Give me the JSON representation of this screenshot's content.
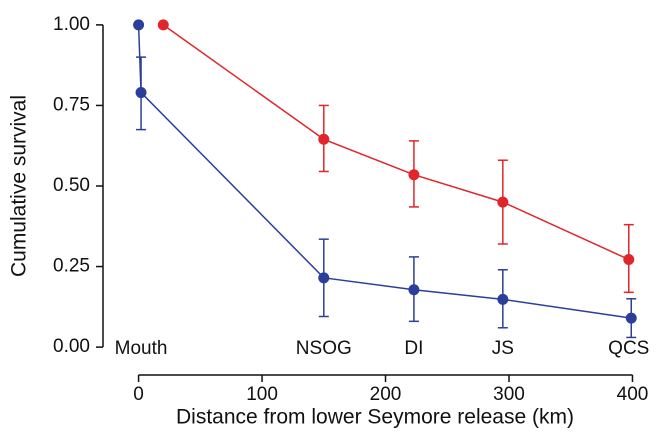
{
  "chart_data": {
    "type": "line",
    "xlabel": "Distance from lower Seymore release (km)",
    "ylabel": "Cumulative survival",
    "xlim": [
      -28,
      415
    ],
    "ylim": [
      -0.04,
      1.04
    ],
    "xticks": [
      0,
      100,
      200,
      300,
      400
    ],
    "yticks": [
      {
        "value": 0,
        "label": "0.00"
      },
      {
        "value": 0.25,
        "label": "0.25"
      },
      {
        "value": 0.5,
        "label": "0.50"
      },
      {
        "value": 0.75,
        "label": "0.75"
      },
      {
        "value": 1,
        "label": "1.00"
      }
    ],
    "series": [
      {
        "color": "#2b3f9a",
        "x": [
          0,
          2,
          150,
          223,
          295,
          399
        ],
        "values": [
          1.0,
          0.79,
          0.215,
          0.178,
          0.148,
          0.09
        ],
        "lower": [
          null,
          0.675,
          0.095,
          0.08,
          0.06,
          0.03
        ],
        "upper": [
          null,
          0.9,
          0.335,
          0.28,
          0.24,
          0.15
        ]
      },
      {
        "color": "#e0262a",
        "x": [
          20,
          150,
          223,
          295,
          397
        ],
        "values": [
          1.0,
          0.645,
          0.535,
          0.45,
          0.272
        ],
        "lower": [
          null,
          0.545,
          0.435,
          0.32,
          0.17
        ],
        "upper": [
          null,
          0.75,
          0.64,
          0.58,
          0.38
        ]
      }
    ],
    "annotations": [
      {
        "text": "Mouth",
        "x": 2
      },
      {
        "text": "NSOG",
        "x": 150
      },
      {
        "text": "DI",
        "x": 223
      },
      {
        "text": "JS",
        "x": 295
      },
      {
        "text": "QCS",
        "x": 397
      }
    ]
  }
}
